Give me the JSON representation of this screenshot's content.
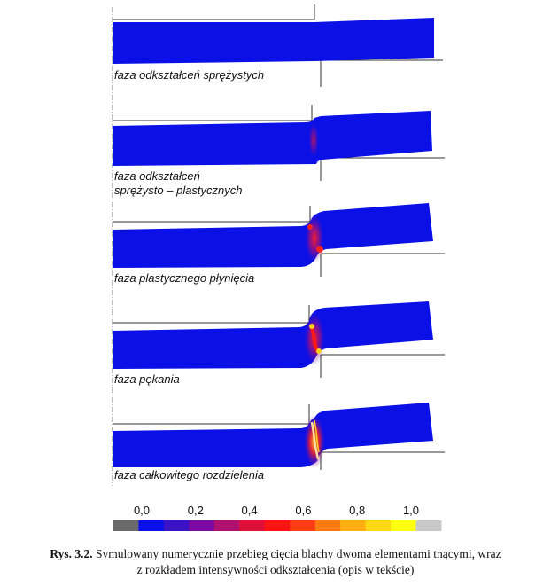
{
  "phases": [
    {
      "label_lines": [
        "faza odkształceń sprężystych"
      ]
    },
    {
      "label_lines": [
        "faza odkształceń",
        "sprężysto – plastycznych"
      ]
    },
    {
      "label_lines": [
        "faza plastycznego płynięcia"
      ]
    },
    {
      "label_lines": [
        "faza pękania"
      ]
    },
    {
      "label_lines": [
        "faza całkowitego rozdzielenia"
      ]
    }
  ],
  "scale": {
    "ticks": [
      "0,0",
      "0,2",
      "0,4",
      "0,6",
      "0,8",
      "1,0"
    ],
    "colors": [
      "#6a6a6a",
      "#0a10e8",
      "#3a12c8",
      "#7a0aa0",
      "#b01070",
      "#e0103a",
      "#ff1414",
      "#ff3c14",
      "#ff7a10",
      "#ffb010",
      "#ffd814",
      "#ffff10",
      "#c8c8c8"
    ]
  },
  "sheet_color": "#0a10e6",
  "caption": {
    "ref": "Rys. 3.2.",
    "line1": "Symulowany numerycznie przebieg cięcia blachy dwoma elementami tnącymi, wraz",
    "line2": "z rozkładem intensywności odkształcenia (opis w tekście)"
  }
}
